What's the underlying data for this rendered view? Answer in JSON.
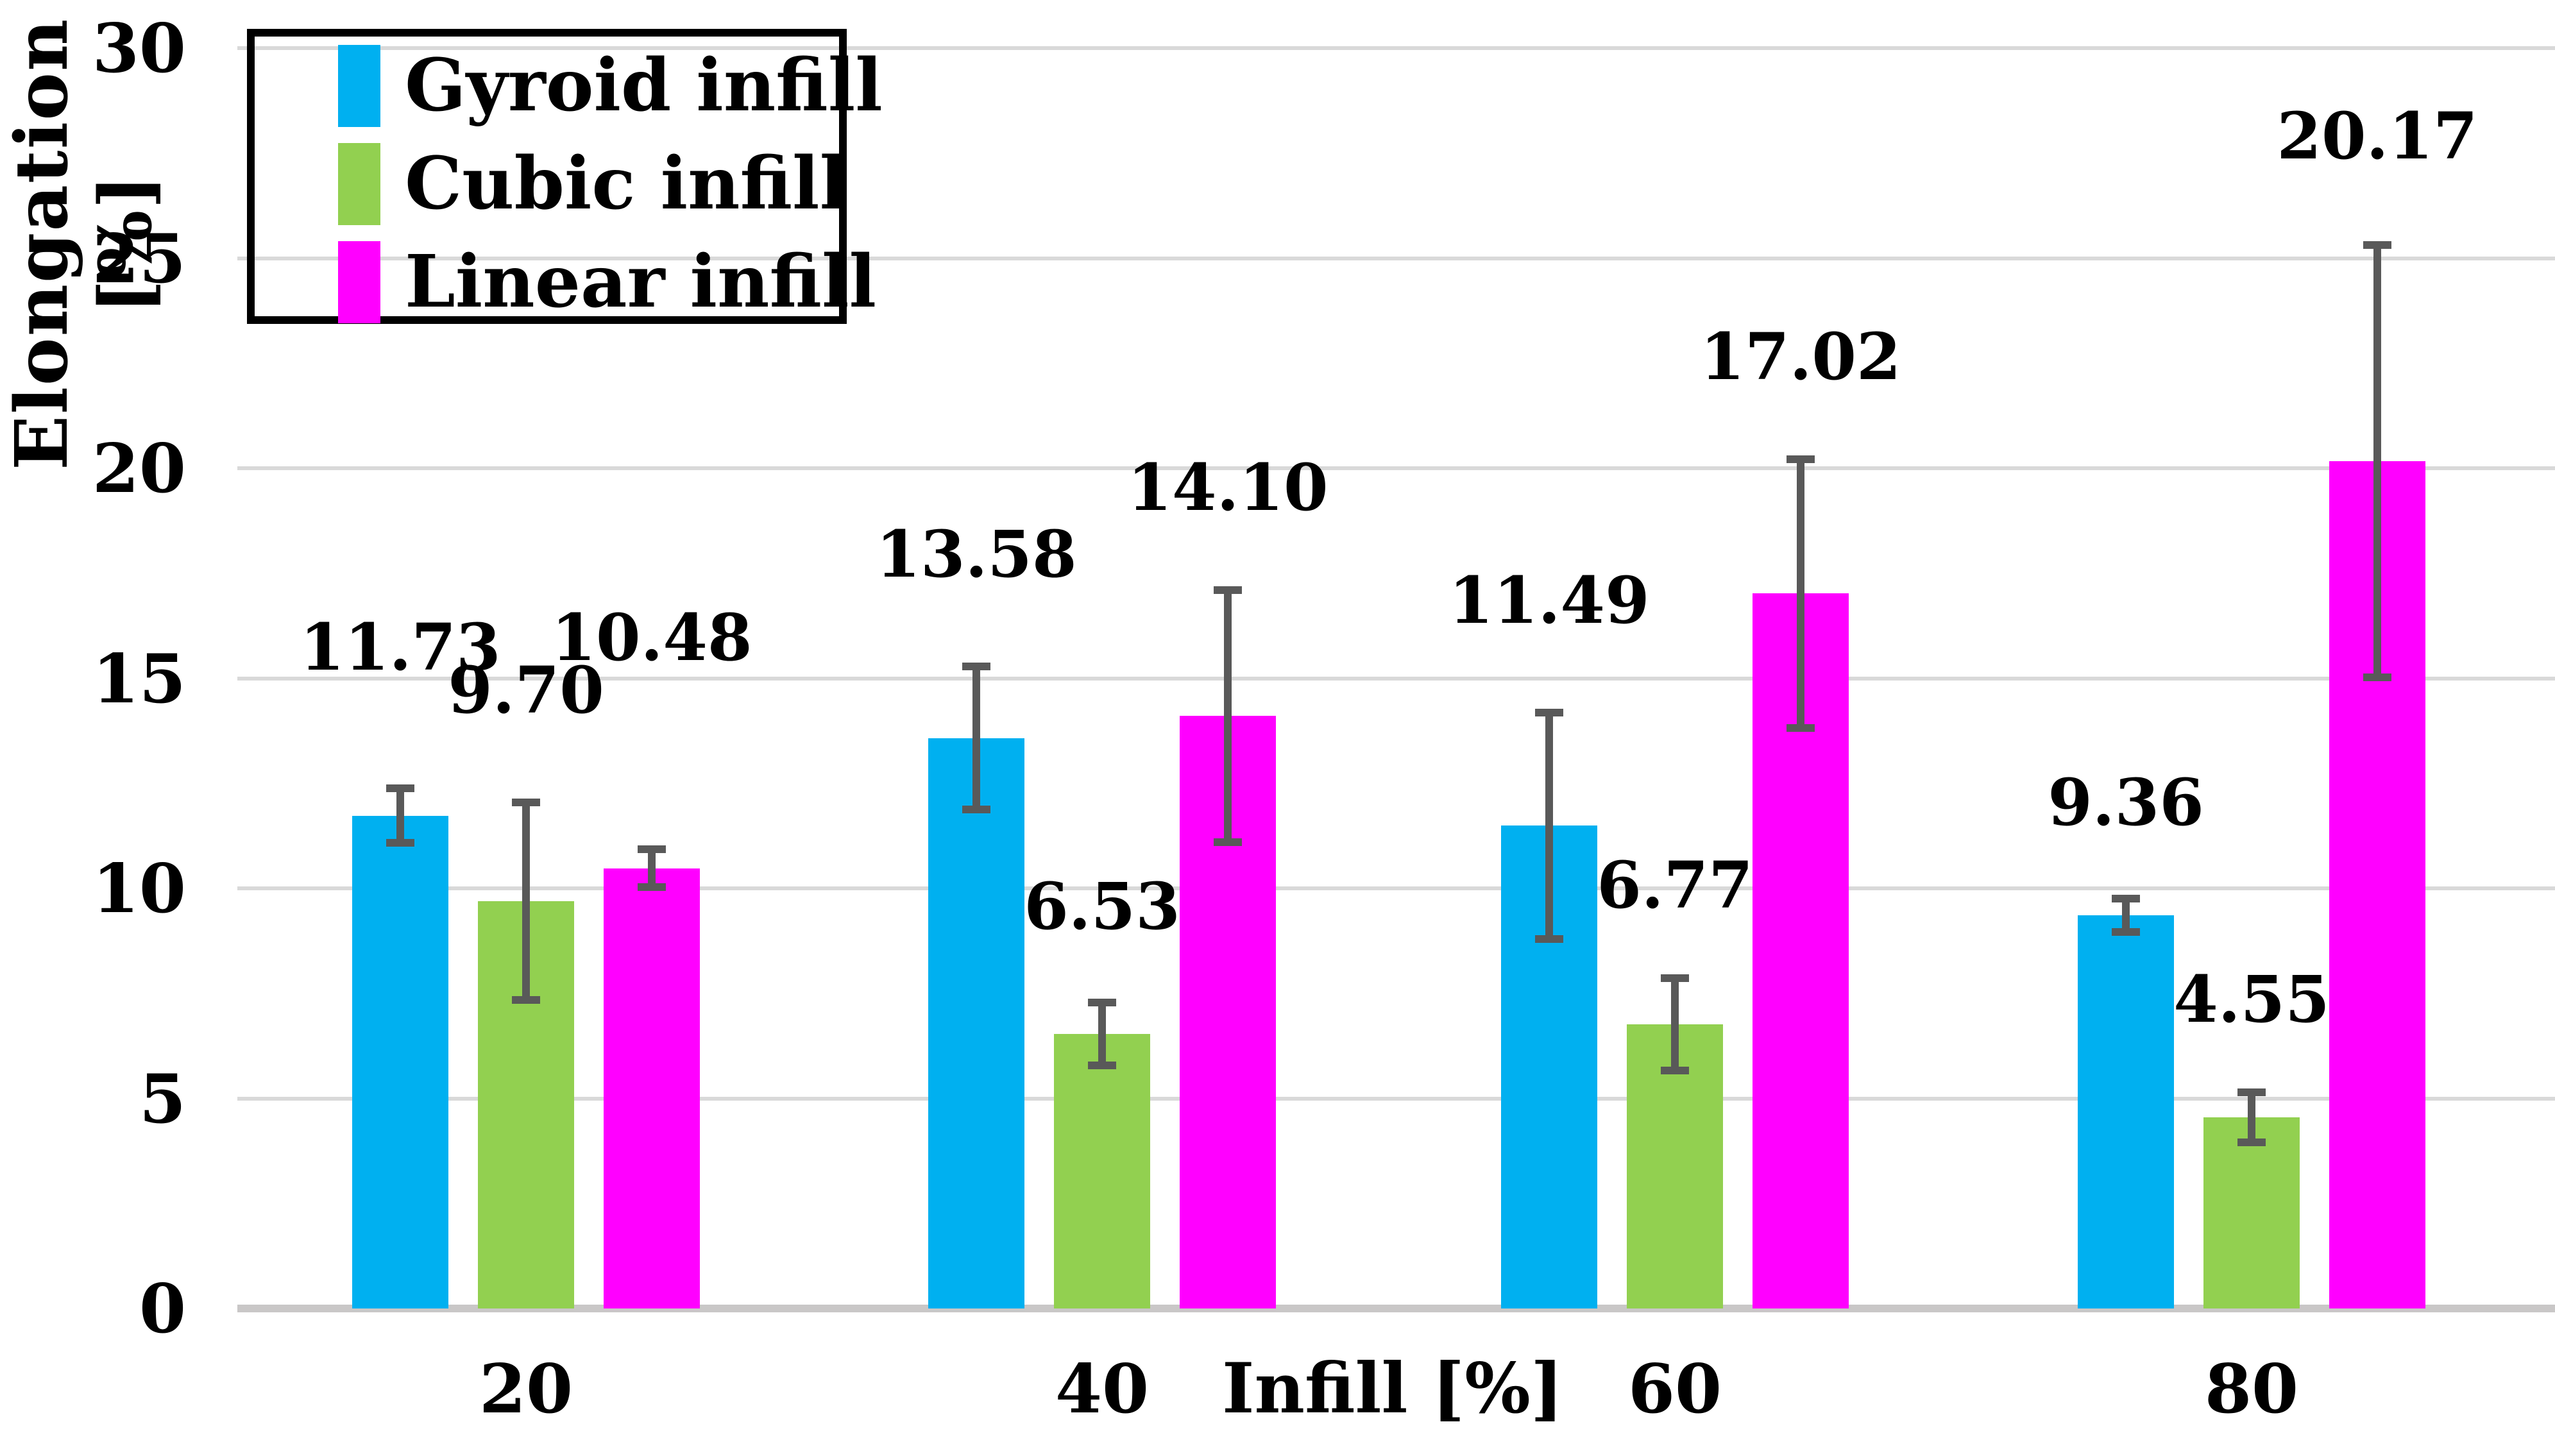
{
  "y_axis": {
    "label": "Elongation [%]",
    "ticks": [
      "0",
      "5",
      "10",
      "15",
      "20",
      "25",
      "30"
    ],
    "min": 0,
    "max": 30,
    "tick_step": 5
  },
  "x_axis": {
    "label": "Infill [%]",
    "ticks": [
      "20",
      "40",
      "60",
      "80"
    ]
  },
  "legend": {
    "position": "top-left",
    "items": [
      {
        "label": "Gyroid infill",
        "color": "#00B0F0"
      },
      {
        "label": "Cubic infill",
        "color": "#92D050"
      },
      {
        "label": "Linear infill",
        "color": "#FF00FF"
      }
    ]
  },
  "chart_data": {
    "type": "bar",
    "title": "",
    "xlabel": "Infill [%]",
    "ylabel": "Elongation [%]",
    "categories": [
      "20",
      "40",
      "60",
      "80"
    ],
    "series": [
      {
        "name": "Gyroid infill",
        "color": "#00B0F0",
        "values": [
          11.73,
          13.58,
          11.49,
          9.36
        ],
        "errors": [
          0.65,
          1.7,
          2.7,
          0.4
        ],
        "label_offsets": [
          165,
          120,
          120,
          95
        ]
      },
      {
        "name": "Cubic infill",
        "color": "#92D050",
        "values": [
          9.7,
          6.53,
          6.77,
          4.55
        ],
        "errors": [
          2.35,
          0.75,
          1.1,
          0.6
        ],
        "label_offsets": [
          120,
          95,
          90,
          90
        ]
      },
      {
        "name": "Linear infill",
        "color": "#FF00FF",
        "values": [
          10.48,
          14.1,
          17.02,
          20.17
        ],
        "errors": [
          0.45,
          3.0,
          3.2,
          5.15
        ],
        "label_offsets": [
          275,
          105,
          105,
          115
        ]
      }
    ],
    "value_labels": [
      [
        "11.73",
        "13.58",
        "11.49",
        "9.36"
      ],
      [
        "9.70",
        "6.53",
        "6.77",
        "4.55"
      ],
      [
        "10.48",
        "14.10",
        "17.02",
        "20.17"
      ]
    ],
    "ylim": [
      0,
      30
    ],
    "grid": true,
    "gridline_color": "#D9D9D9",
    "axis_line_color": "#C9C7C7",
    "error_bar_color": "#595959",
    "text_color": "#000000",
    "background_color": "#FFFFFF",
    "legend_position": "top-left"
  }
}
